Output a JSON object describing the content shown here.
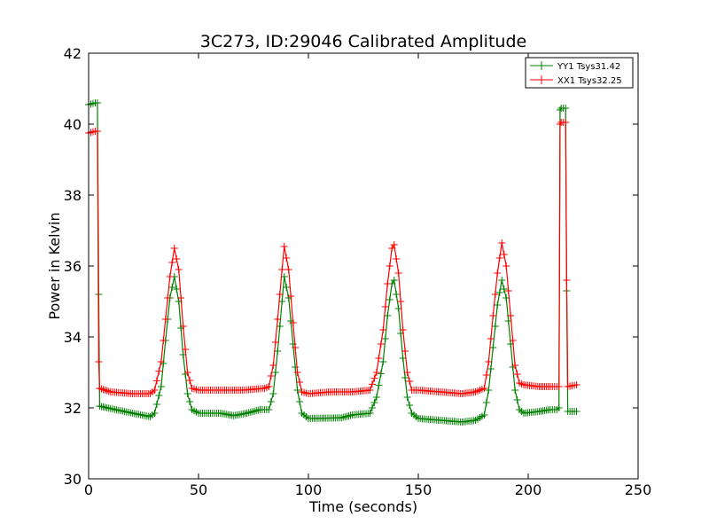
{
  "chart_data": {
    "type": "line",
    "title": "3C273, ID:29046 Calibrated Amplitude",
    "xlabel": "Time (seconds)",
    "ylabel": "Power in Kelvin",
    "xlim": [
      0,
      250
    ],
    "ylim": [
      30,
      42
    ],
    "xticks": [
      "0",
      "50",
      "100",
      "150",
      "200",
      "250"
    ],
    "yticks": [
      "30",
      "32",
      "34",
      "36",
      "38",
      "40",
      "42"
    ],
    "grid": false,
    "legend_position": "top-right",
    "marker": "+",
    "series": [
      {
        "name": "YY1 Tsys31.42",
        "color": "#008000",
        "points": [
          [
            0,
            40.55
          ],
          [
            3,
            40.6
          ],
          [
            4,
            40.6
          ],
          [
            4.6,
            35.2
          ],
          [
            5,
            32.05
          ],
          [
            10,
            31.98
          ],
          [
            20,
            31.85
          ],
          [
            28,
            31.75
          ],
          [
            30,
            31.85
          ],
          [
            33,
            32.6
          ],
          [
            35,
            33.9
          ],
          [
            37,
            35.1
          ],
          [
            39,
            35.7
          ],
          [
            41,
            35.0
          ],
          [
            43,
            33.5
          ],
          [
            45,
            32.4
          ],
          [
            47,
            31.95
          ],
          [
            50,
            31.85
          ],
          [
            60,
            31.85
          ],
          [
            66,
            31.78
          ],
          [
            72,
            31.85
          ],
          [
            78,
            31.95
          ],
          [
            82,
            31.95
          ],
          [
            84,
            32.4
          ],
          [
            86,
            33.6
          ],
          [
            88,
            35.0
          ],
          [
            89,
            35.7
          ],
          [
            91,
            35.1
          ],
          [
            93,
            33.8
          ],
          [
            95,
            32.5
          ],
          [
            97,
            31.85
          ],
          [
            100,
            31.7
          ],
          [
            115,
            31.72
          ],
          [
            120,
            31.8
          ],
          [
            128,
            31.85
          ],
          [
            131,
            32.3
          ],
          [
            134,
            33.3
          ],
          [
            136,
            34.6
          ],
          [
            138,
            35.5
          ],
          [
            139,
            35.6
          ],
          [
            141,
            34.8
          ],
          [
            143,
            33.4
          ],
          [
            145,
            32.3
          ],
          [
            147,
            31.85
          ],
          [
            150,
            31.7
          ],
          [
            160,
            31.65
          ],
          [
            170,
            31.6
          ],
          [
            176,
            31.65
          ],
          [
            180,
            31.8
          ],
          [
            182,
            32.5
          ],
          [
            184,
            33.7
          ],
          [
            186,
            34.9
          ],
          [
            188,
            35.6
          ],
          [
            190,
            35.1
          ],
          [
            192,
            33.8
          ],
          [
            194,
            32.5
          ],
          [
            196,
            31.95
          ],
          [
            198,
            31.85
          ],
          [
            205,
            31.9
          ],
          [
            210,
            31.95
          ],
          [
            213,
            31.95
          ],
          [
            214,
            32.0
          ],
          [
            214.5,
            40.4
          ],
          [
            215,
            40.45
          ],
          [
            217,
            40.45
          ],
          [
            217.5,
            35.3
          ],
          [
            218,
            31.9
          ],
          [
            222,
            31.9
          ]
        ]
      },
      {
        "name": "XX1 Tsys32.25",
        "color": "#ff0000",
        "points": [
          [
            0,
            39.75
          ],
          [
            3,
            39.8
          ],
          [
            4,
            39.8
          ],
          [
            4.6,
            33.3
          ],
          [
            5,
            32.55
          ],
          [
            10,
            32.45
          ],
          [
            20,
            32.4
          ],
          [
            28,
            32.4
          ],
          [
            30,
            32.5
          ],
          [
            33,
            33.3
          ],
          [
            35,
            34.5
          ],
          [
            37,
            35.7
          ],
          [
            39,
            36.5
          ],
          [
            41,
            35.9
          ],
          [
            43,
            34.3
          ],
          [
            45,
            33.0
          ],
          [
            47,
            32.55
          ],
          [
            50,
            32.5
          ],
          [
            60,
            32.5
          ],
          [
            70,
            32.5
          ],
          [
            80,
            32.55
          ],
          [
            82,
            32.6
          ],
          [
            84,
            33.2
          ],
          [
            86,
            34.5
          ],
          [
            88,
            35.9
          ],
          [
            89,
            36.55
          ],
          [
            91,
            35.9
          ],
          [
            93,
            34.4
          ],
          [
            95,
            33.0
          ],
          [
            97,
            32.45
          ],
          [
            100,
            32.4
          ],
          [
            110,
            32.45
          ],
          [
            120,
            32.45
          ],
          [
            128,
            32.5
          ],
          [
            131,
            33.0
          ],
          [
            134,
            34.2
          ],
          [
            136,
            35.5
          ],
          [
            138,
            36.5
          ],
          [
            139,
            36.6
          ],
          [
            141,
            35.8
          ],
          [
            143,
            34.2
          ],
          [
            145,
            33.0
          ],
          [
            147,
            32.5
          ],
          [
            150,
            32.5
          ],
          [
            160,
            32.45
          ],
          [
            170,
            32.4
          ],
          [
            176,
            32.45
          ],
          [
            180,
            32.55
          ],
          [
            182,
            33.3
          ],
          [
            184,
            34.6
          ],
          [
            186,
            35.8
          ],
          [
            188,
            36.65
          ],
          [
            190,
            36.0
          ],
          [
            192,
            34.6
          ],
          [
            194,
            33.2
          ],
          [
            196,
            32.7
          ],
          [
            198,
            32.65
          ],
          [
            205,
            32.6
          ],
          [
            210,
            32.6
          ],
          [
            213,
            32.6
          ],
          [
            214,
            32.6
          ],
          [
            214.5,
            40.0
          ],
          [
            215,
            40.05
          ],
          [
            217,
            40.05
          ],
          [
            217.5,
            35.6
          ],
          [
            218,
            32.6
          ],
          [
            222,
            32.65
          ]
        ]
      }
    ]
  }
}
